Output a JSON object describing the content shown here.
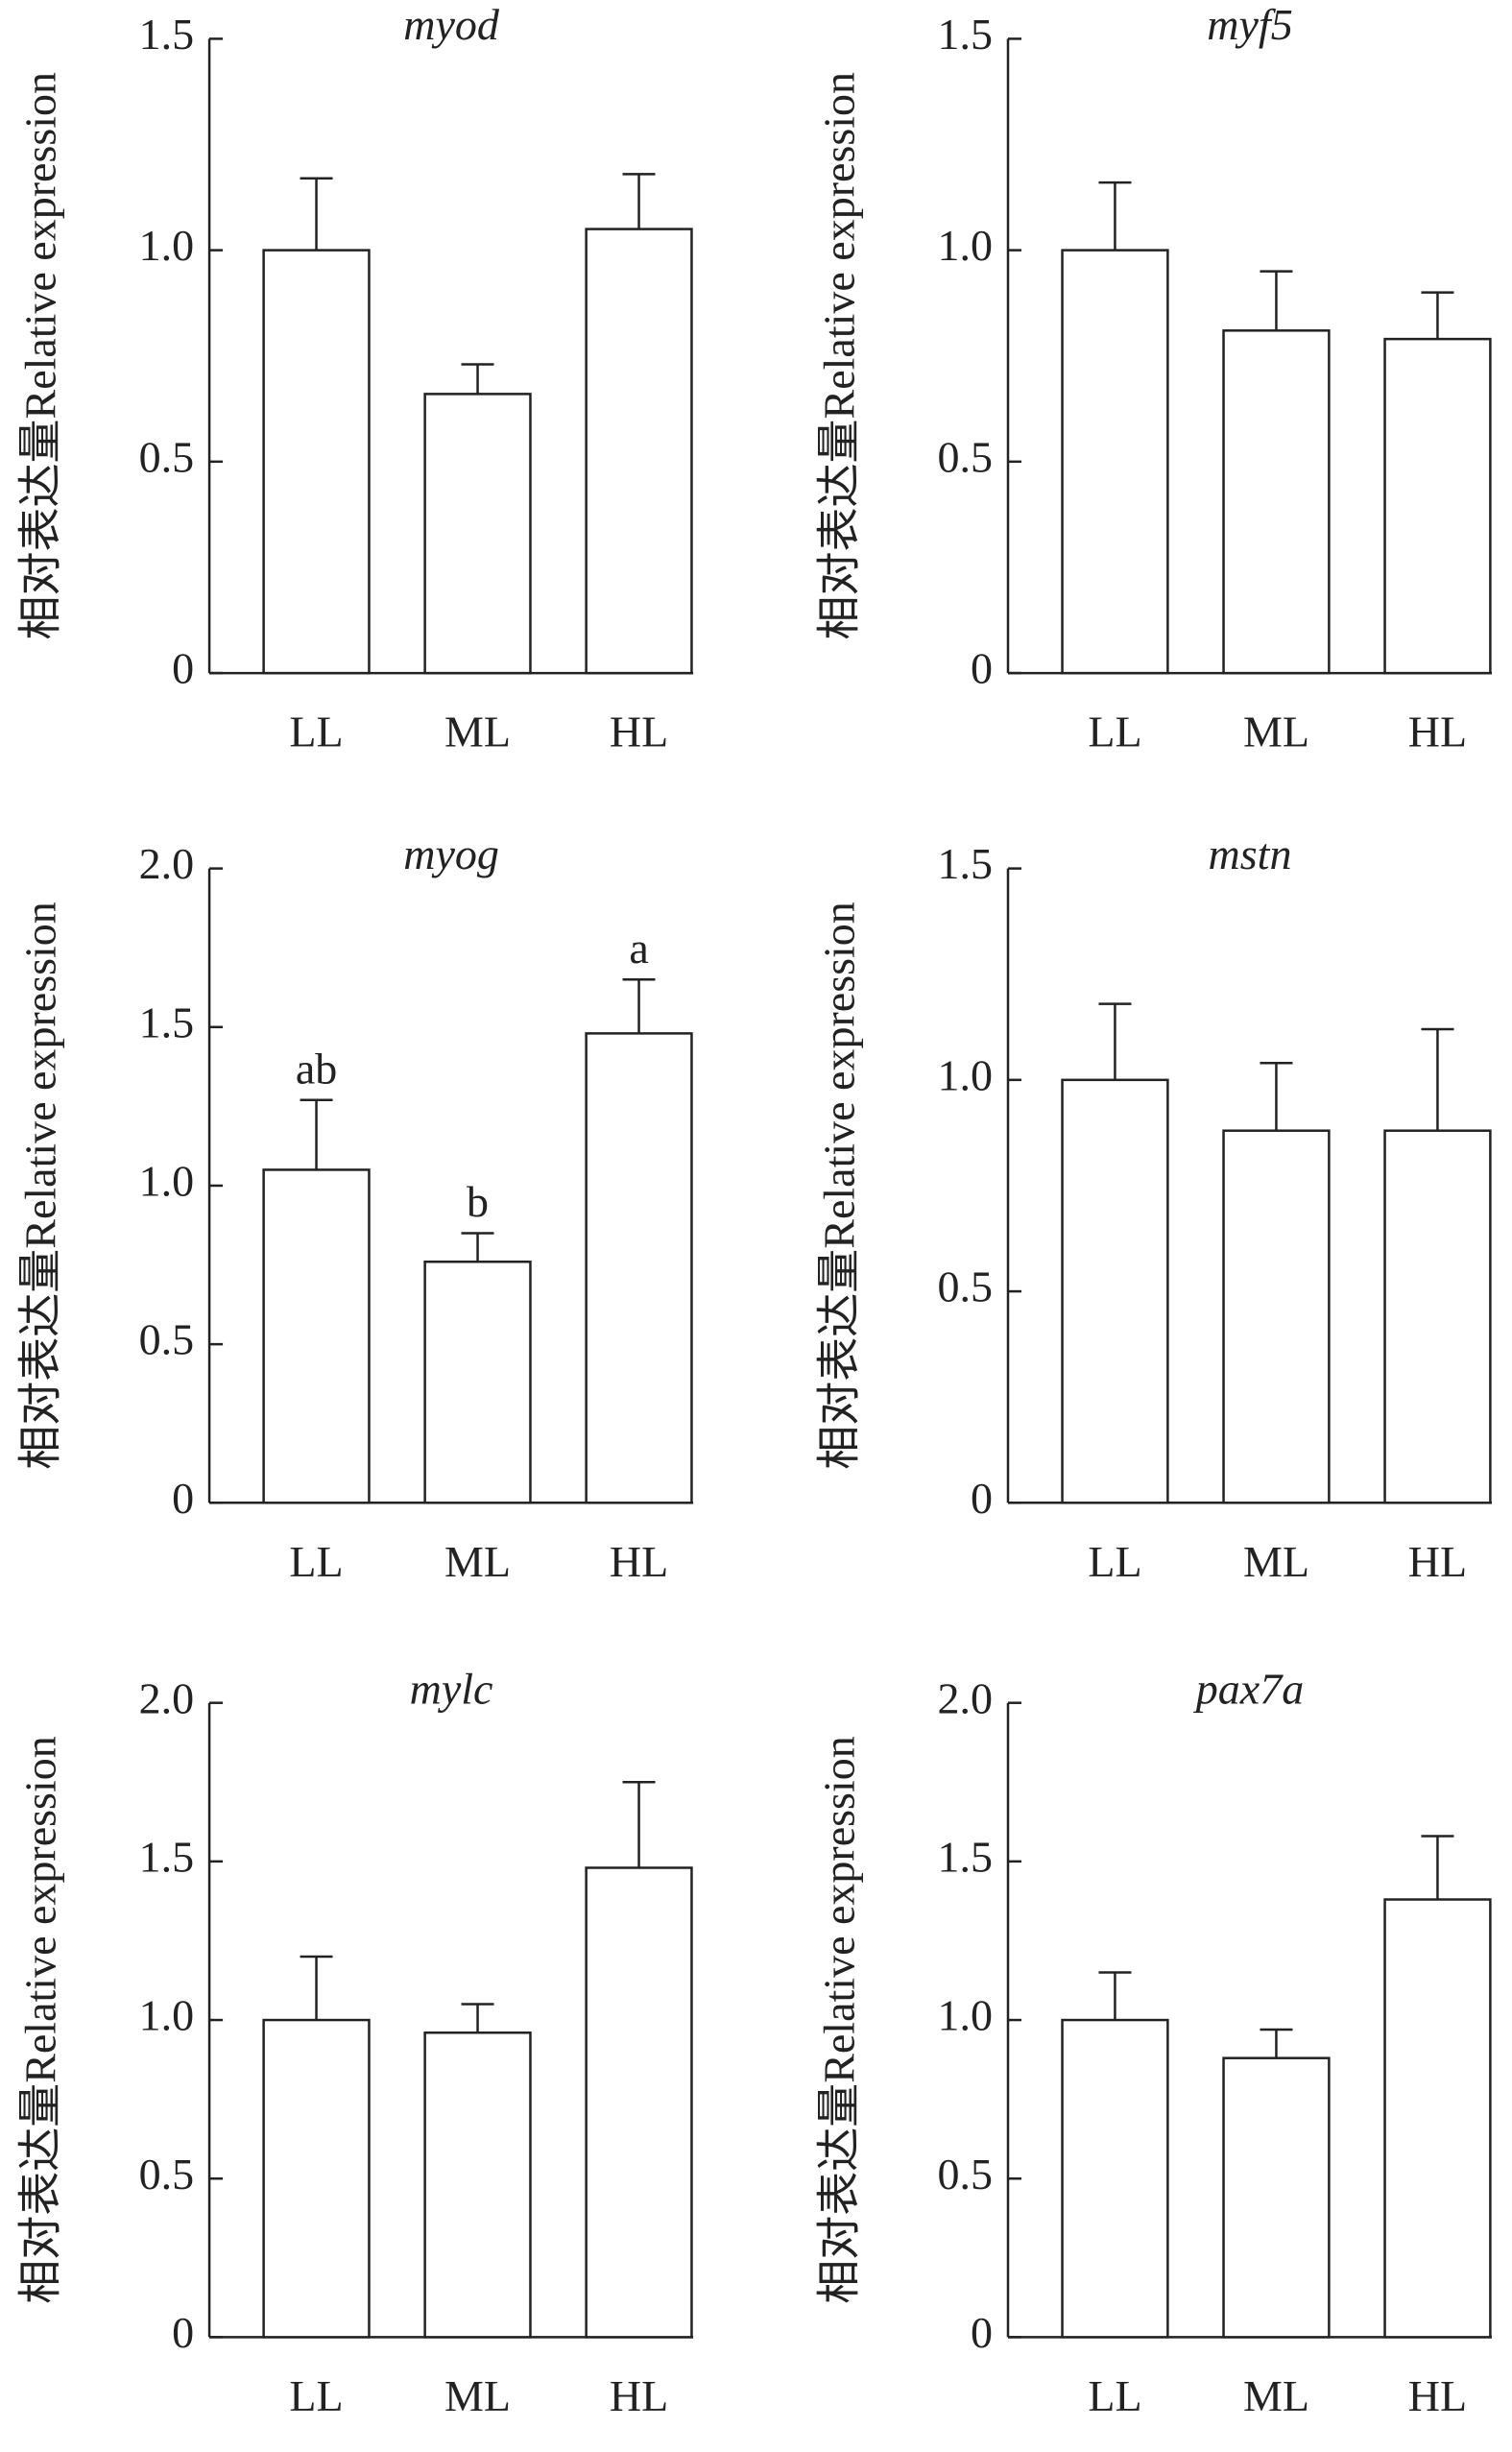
{
  "chart_data": [
    {
      "type": "bar",
      "title": "myod",
      "ylabel": "相对表达量Relative expression",
      "categories": [
        "LL",
        "ML",
        "HL"
      ],
      "values": [
        1.0,
        0.66,
        1.05
      ],
      "errors": [
        0.17,
        0.07,
        0.13
      ],
      "ylim": [
        0,
        1.5
      ],
      "yticks": [
        0,
        0.5,
        {
          "value": 1,
          "label": "1.0"
        },
        1.5
      ]
    },
    {
      "type": "bar",
      "title": "myf5",
      "ylabel": "相对表达量Relative expression",
      "categories": [
        "LL",
        "ML",
        "HL"
      ],
      "values": [
        1.0,
        0.81,
        0.79
      ],
      "errors": [
        0.16,
        0.14,
        0.11
      ],
      "ylim": [
        0,
        1.5
      ],
      "yticks": [
        0,
        0.5,
        {
          "value": 1,
          "label": "1.0"
        },
        1.5
      ]
    },
    {
      "type": "bar",
      "title": "myog",
      "ylabel": "相对表达量Relative expression",
      "categories": [
        "LL",
        "ML",
        "HL"
      ],
      "values": [
        1.05,
        0.76,
        1.48
      ],
      "errors": [
        0.22,
        0.09,
        0.17
      ],
      "letters": [
        "ab",
        "b",
        "a"
      ],
      "ylim": [
        0,
        2
      ],
      "yticks": [
        0,
        0.5,
        {
          "value": 1,
          "label": "1.0"
        },
        1.5,
        {
          "value": 2,
          "label": "2.0"
        }
      ]
    },
    {
      "type": "bar",
      "title": "mstn",
      "ylabel": "相对表达量Relative expression",
      "categories": [
        "LL",
        "ML",
        "HL"
      ],
      "values": [
        1.0,
        0.88,
        0.88
      ],
      "errors": [
        0.18,
        0.16,
        0.24
      ],
      "ylim": [
        0,
        1.5
      ],
      "yticks": [
        0,
        0.5,
        {
          "value": 1,
          "label": "1.0"
        },
        1.5
      ]
    },
    {
      "type": "bar",
      "title": "mylc",
      "ylabel": "相对表达量Relative expression",
      "categories": [
        "LL",
        "ML",
        "HL"
      ],
      "values": [
        1.0,
        0.96,
        1.48
      ],
      "errors": [
        0.2,
        0.09,
        0.27
      ],
      "ylim": [
        0,
        2
      ],
      "yticks": [
        0,
        0.5,
        {
          "value": 1,
          "label": "1.0"
        },
        1.5,
        {
          "value": 2,
          "label": "2.0"
        }
      ]
    },
    {
      "type": "bar",
      "title": "pax7a",
      "ylabel": "相对表达量Relative expression",
      "categories": [
        "LL",
        "ML",
        "HL"
      ],
      "values": [
        1.0,
        0.88,
        1.38
      ],
      "errors": [
        0.15,
        0.09,
        0.2
      ],
      "ylim": [
        0,
        2
      ],
      "yticks": [
        0,
        0.5,
        {
          "value": 1,
          "label": "1.0"
        },
        1.5,
        {
          "value": 2,
          "label": "2.0"
        }
      ]
    }
  ]
}
